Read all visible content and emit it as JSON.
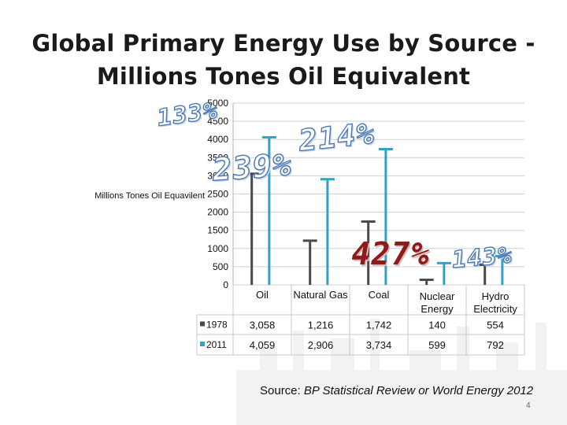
{
  "slide": {
    "title_line1": "Global Primary Energy Use by Source -",
    "title_line2": "Millions  Tones Oil Equivalent",
    "source_prefix": "Source: ",
    "source_title": "BP Statistical Review or World Energy 2012",
    "page_number": "4"
  },
  "annotations": [
    "133%",
    "214%",
    "239%",
    "427%",
    "143%"
  ],
  "colors": {
    "bar_1978": "#4a4a4a",
    "bar_2011": "#31a2c4",
    "grid": "#d0d0d0",
    "pct_outline": "#4b78b0",
    "pct_red": "#8e1a1a"
  },
  "chart_data": {
    "type": "bar",
    "ylabel": "Millions Tones Oil Equavilent",
    "ylim": [
      0,
      5000
    ],
    "yticks": [
      0,
      500,
      1000,
      1500,
      2000,
      2500,
      3000,
      3500,
      4000,
      4500,
      5000
    ],
    "categories": [
      "Oil",
      "Natural Gas",
      "Coal",
      "Nuclear Energy",
      "Hydro Electricity"
    ],
    "series": [
      {
        "name": "1978",
        "values": [
          3058,
          1216,
          1742,
          140,
          554
        ]
      },
      {
        "name": "2011",
        "values": [
          4059,
          2906,
          3734,
          599,
          792
        ]
      }
    ],
    "table": {
      "rows": [
        {
          "label": "1978",
          "cells": [
            "3,058",
            "1,216",
            "1,742",
            "140",
            "554"
          ]
        },
        {
          "label": "2011",
          "cells": [
            "4,059",
            "2,906",
            "3,734",
            "599",
            "792"
          ]
        }
      ]
    },
    "grid": true,
    "legend": "in data table"
  }
}
